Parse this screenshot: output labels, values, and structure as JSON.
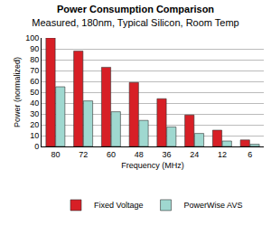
{
  "chart_data": {
    "type": "bar",
    "title": "Power Consumption Comparison",
    "subtitle": "Measured, 180nm, Typical Silicon, Room Temp",
    "x_label": "Frequency (MHz)",
    "y_label": "Power (normalized)",
    "categories": [
      "80",
      "72",
      "60",
      "48",
      "36",
      "24",
      "12",
      "6"
    ],
    "series": [
      {
        "name": "Fixed Voltage",
        "color": "#d71f26",
        "values": [
          100,
          88,
          73,
          59,
          44,
          29,
          15,
          6
        ]
      },
      {
        "name": "PowerWise AVS",
        "color": "#9fd8d0",
        "values": [
          55,
          42,
          32,
          24,
          18,
          12,
          5,
          2
        ]
      }
    ],
    "ylim": [
      0,
      100
    ],
    "yticks": [
      0,
      10,
      20,
      30,
      40,
      50,
      60,
      70,
      80,
      90,
      100
    ],
    "grid": true,
    "legend": "bottom"
  }
}
